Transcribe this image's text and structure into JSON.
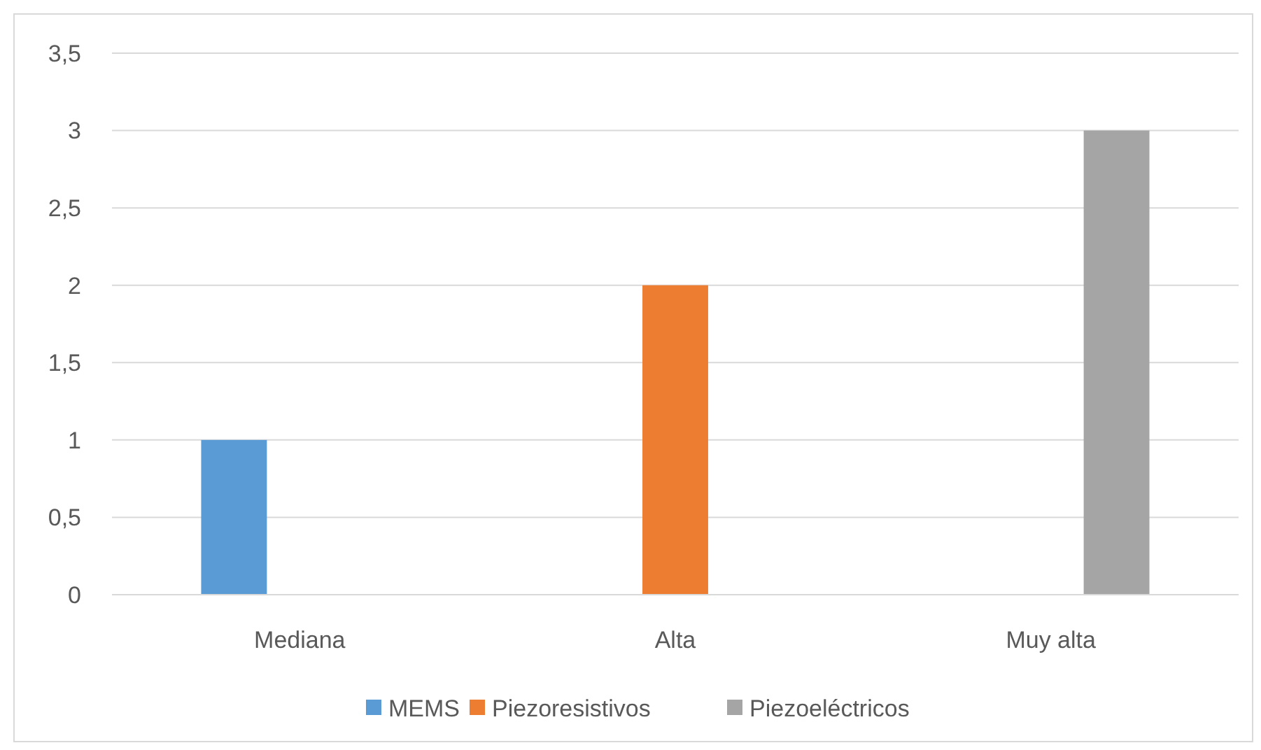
{
  "chart_data": {
    "type": "bar",
    "categories": [
      "Mediana",
      "Alta",
      "Muy alta"
    ],
    "series": [
      {
        "name": "MEMS",
        "color": "#5b9bd5",
        "values": [
          1,
          null,
          null
        ]
      },
      {
        "name": "Piezoresistivos",
        "color": "#ed7d31",
        "values": [
          null,
          2,
          null
        ]
      },
      {
        "name": "Piezoeléctricos",
        "color": "#a5a5a5",
        "values": [
          null,
          null,
          3
        ]
      }
    ],
    "ylim": [
      0,
      3.5
    ],
    "yticks": [
      0,
      {
        "value": 0.5,
        "label": "0,5"
      },
      1,
      {
        "value": 1.5,
        "label": "1,5"
      },
      2,
      {
        "value": 2.5,
        "label": "2,5"
      },
      3,
      {
        "value": 3.5,
        "label": "3,5"
      }
    ],
    "grid": "y",
    "legend": "bottom"
  }
}
